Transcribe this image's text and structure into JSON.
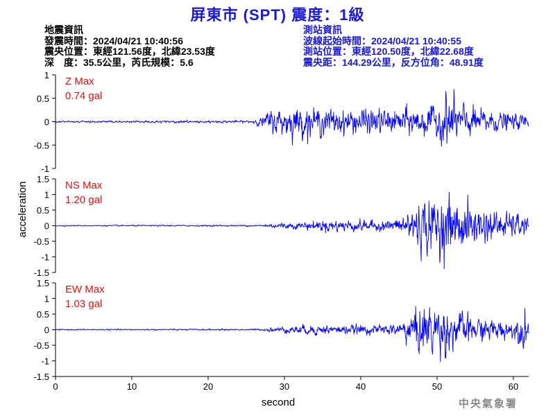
{
  "title": "屏東市 (SPT) 震度：1級",
  "info_left": {
    "heading": "地震資訊",
    "origin_time": "發震時間：2024/04/21 10:40:56",
    "epicenter": "震央位置：東經121.56度，北緯23.53度",
    "depth_magnitude": "深　度：35.5公里，芮氏規模：5.6"
  },
  "info_right": {
    "heading": "測站資訊",
    "wave_start": "波線起始時間：2024/04/21 10:40:55",
    "station_location": "測站位置：東經120.50度，北緯22.68度",
    "distance_azimuth": "震央距：144.29公里，反方位角：48.91度"
  },
  "agency": "中央氣象署",
  "chart_data": {
    "type": "line",
    "xlabel": "second",
    "ylabel": "acceleration",
    "xlim": [
      0,
      62
    ],
    "x_ticks": [
      "0",
      "10",
      "20",
      "30",
      "40",
      "50",
      "60"
    ],
    "line_color": "#0000ff",
    "label_color": "#e81010",
    "channels": [
      {
        "name": "Z Max",
        "max_label": "0.74 gal",
        "ylim": [
          -1,
          1
        ],
        "y_ticks": [
          "1",
          "0.5",
          "0",
          "-0.5",
          "-1"
        ],
        "envelope": {
          "x": [
            0,
            25.5,
            27,
            28,
            29,
            30,
            31,
            32,
            34,
            36,
            38,
            40,
            42,
            44,
            46,
            48,
            50,
            51.5,
            53,
            55,
            58,
            60,
            62
          ],
          "amplitude": [
            0.02,
            0.03,
            0.12,
            0.28,
            0.32,
            0.36,
            0.4,
            0.42,
            0.33,
            0.34,
            0.3,
            0.35,
            0.33,
            0.3,
            0.35,
            0.38,
            0.42,
            0.74,
            0.45,
            0.35,
            0.25,
            0.2,
            0.2
          ]
        }
      },
      {
        "name": "NS Max",
        "max_label": "1.20 gal",
        "ylim": [
          -1.5,
          1.5
        ],
        "y_ticks": [
          "1.5",
          "1",
          "0.5",
          "0",
          "-0.5",
          "-1",
          "-1.5"
        ],
        "envelope": {
          "x": [
            0,
            27,
            28,
            30,
            32,
            34,
            36,
            38,
            40,
            42,
            44,
            45,
            46,
            47,
            48,
            50,
            51,
            52,
            54,
            56,
            58,
            60,
            62
          ],
          "amplitude": [
            0.02,
            0.03,
            0.09,
            0.12,
            0.13,
            0.2,
            0.23,
            0.22,
            0.22,
            0.2,
            0.22,
            0.28,
            0.55,
            0.9,
            1.0,
            1.05,
            1.2,
            1.0,
            0.9,
            0.7,
            0.55,
            0.45,
            0.4
          ]
        }
      },
      {
        "name": "EW Max",
        "max_label": "1.03 gal",
        "ylim": [
          -1.5,
          1.5
        ],
        "y_ticks": [
          "1.5",
          "1",
          "0.5",
          "0",
          "-0.5",
          "-1",
          "-1.5"
        ],
        "envelope": {
          "x": [
            0,
            27,
            28,
            30,
            32,
            34,
            36,
            38,
            40,
            42,
            44,
            45,
            46,
            47,
            48,
            49,
            50,
            52,
            54,
            56,
            58,
            60,
            61.5,
            62
          ],
          "amplitude": [
            0.02,
            0.03,
            0.08,
            0.12,
            0.18,
            0.2,
            0.18,
            0.16,
            0.2,
            0.17,
            0.2,
            0.28,
            0.5,
            0.85,
            0.95,
            0.95,
            1.03,
            0.8,
            0.55,
            0.45,
            0.4,
            0.3,
            0.75,
            0.4
          ]
        }
      }
    ]
  }
}
